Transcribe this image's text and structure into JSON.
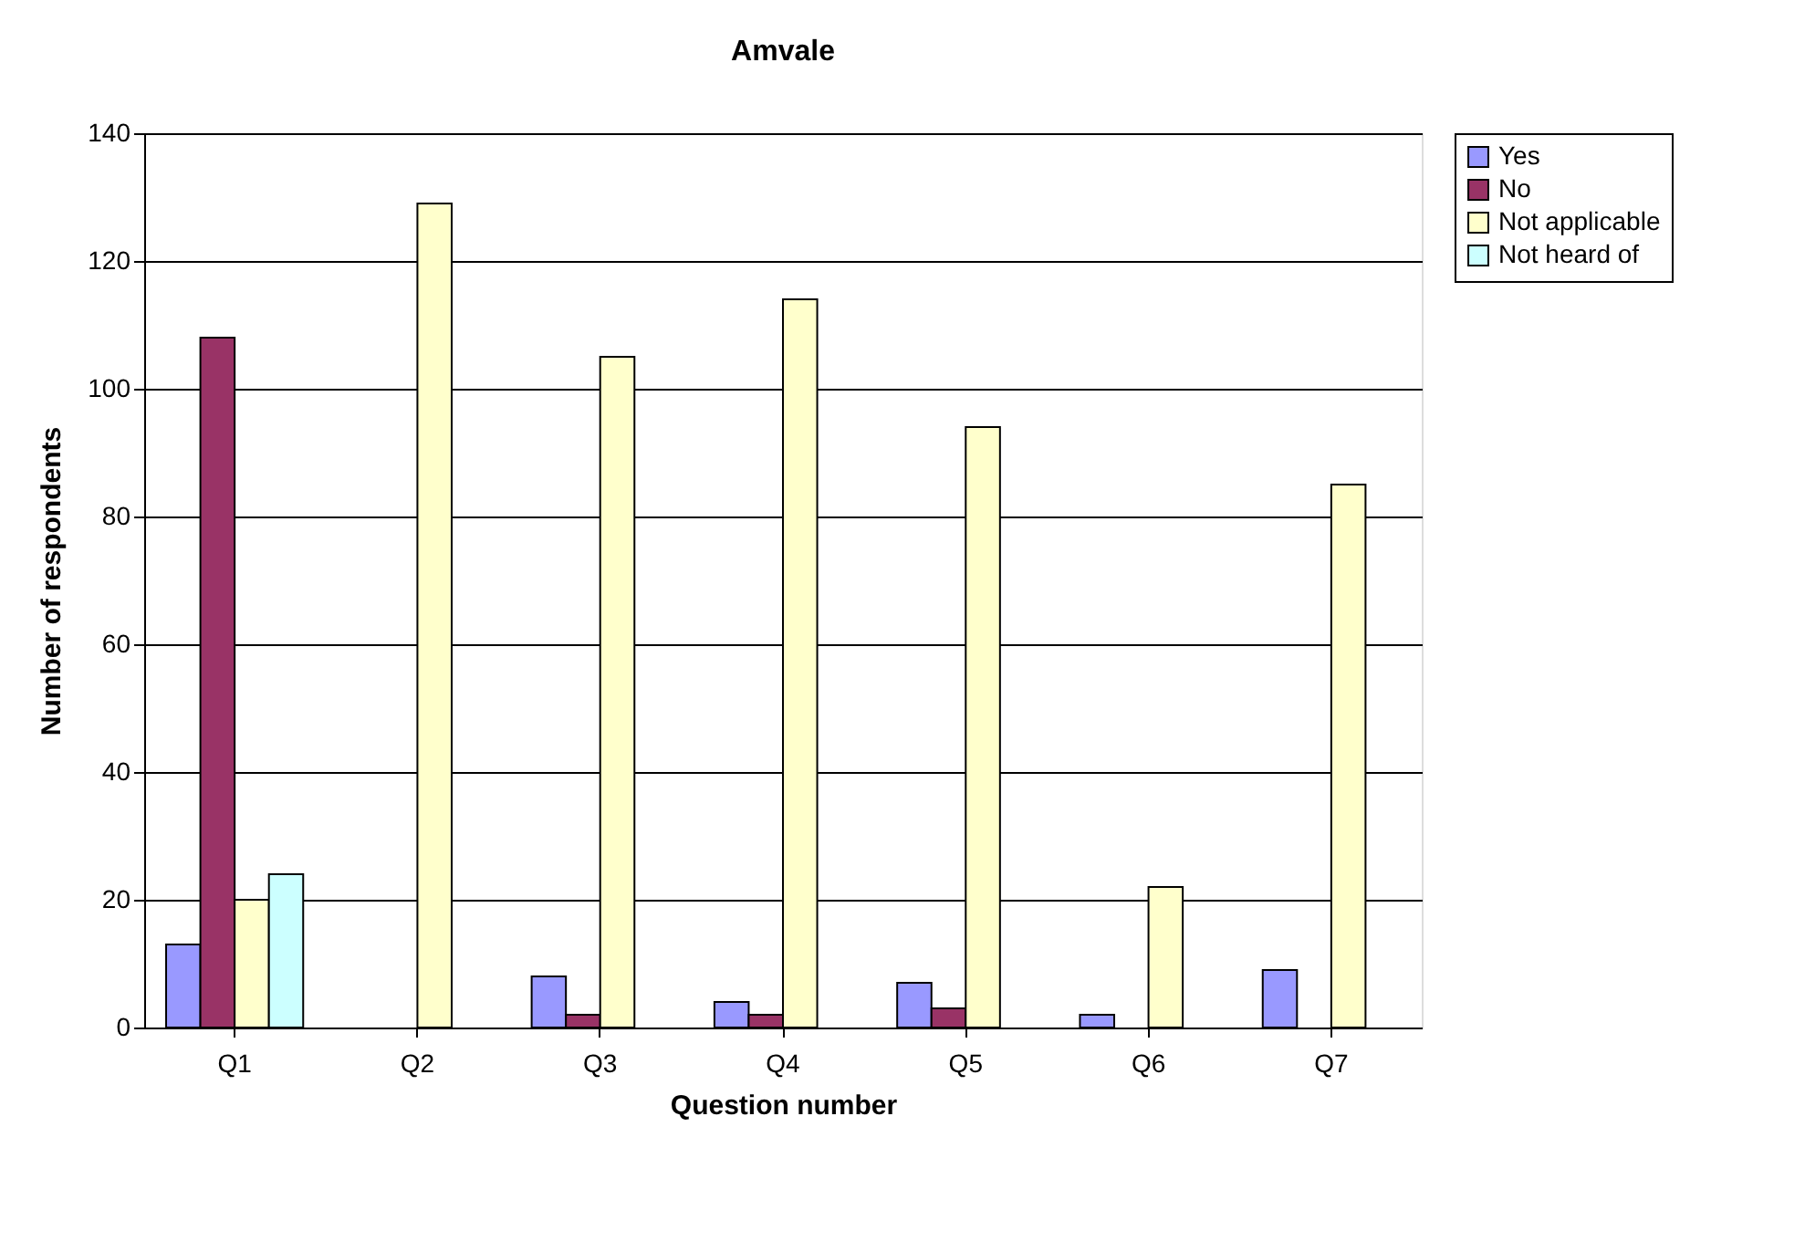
{
  "chart_data": {
    "type": "bar",
    "title": "Amvale",
    "xlabel": "Question number",
    "ylabel": "Number of respondents",
    "categories": [
      "Q1",
      "Q2",
      "Q3",
      "Q4",
      "Q5",
      "Q6",
      "Q7"
    ],
    "series": [
      {
        "name": "Yes",
        "color": "#9999ff",
        "values": [
          13,
          null,
          8,
          4,
          7,
          2,
          9
        ]
      },
      {
        "name": "No",
        "color": "#993366",
        "values": [
          108,
          null,
          2,
          2,
          3,
          null,
          null
        ]
      },
      {
        "name": "Not applicable",
        "color": "#ffffcc",
        "values": [
          20,
          129,
          105,
          114,
          94,
          22,
          85
        ]
      },
      {
        "name": "Not heard of",
        "color": "#ccffff",
        "values": [
          24,
          null,
          null,
          null,
          null,
          null,
          null
        ]
      }
    ],
    "ylim": [
      0,
      140
    ],
    "yticks": [
      0,
      20,
      40,
      60,
      80,
      100,
      120,
      140
    ],
    "grid": "y",
    "legend": "right"
  }
}
